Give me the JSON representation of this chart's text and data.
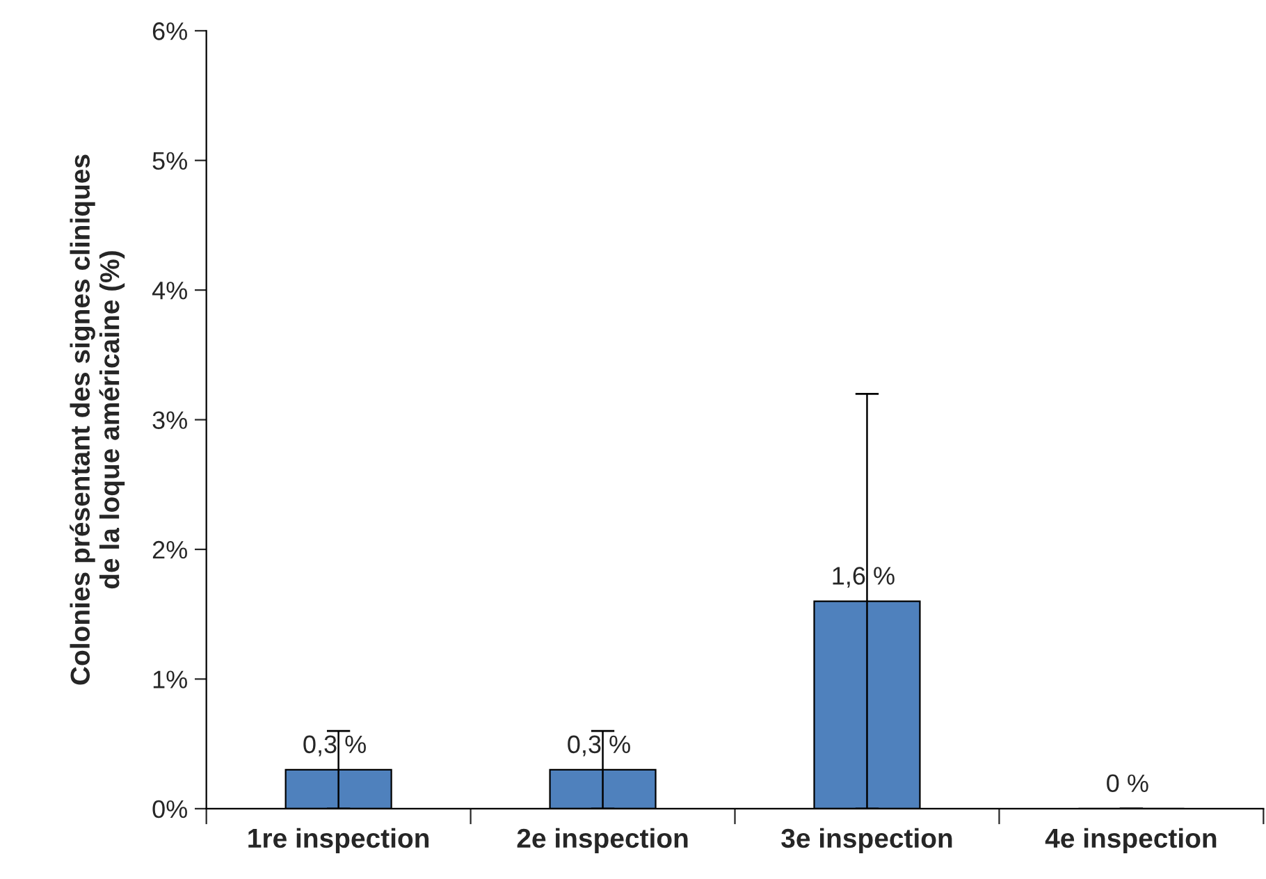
{
  "chart_data": {
    "type": "bar",
    "ylabel": "Colonies présentant des signes cliniques\nde la loque américaine (%)",
    "categories": [
      "1re inspection",
      "2e inspection",
      "3e inspection",
      "4e inspection"
    ],
    "values": [
      0.3,
      0.3,
      1.6,
      0
    ],
    "errors": [
      0.3,
      0.3,
      1.6,
      0
    ],
    "value_labels": [
      "0,3 %",
      "0,3 %",
      "1,6 %",
      "0 %"
    ],
    "color": "#4f81bd",
    "ylim": [
      0,
      6
    ],
    "yticks": [
      {
        "value": 0,
        "label": "0%"
      },
      {
        "value": 1,
        "label": "1%"
      },
      {
        "value": 2,
        "label": "2%"
      },
      {
        "value": 3,
        "label": "3%"
      },
      {
        "value": 4,
        "label": "4%"
      },
      {
        "value": 5,
        "label": "5%"
      },
      {
        "value": 6,
        "label": "6%"
      }
    ],
    "grid": false,
    "legend": false
  }
}
